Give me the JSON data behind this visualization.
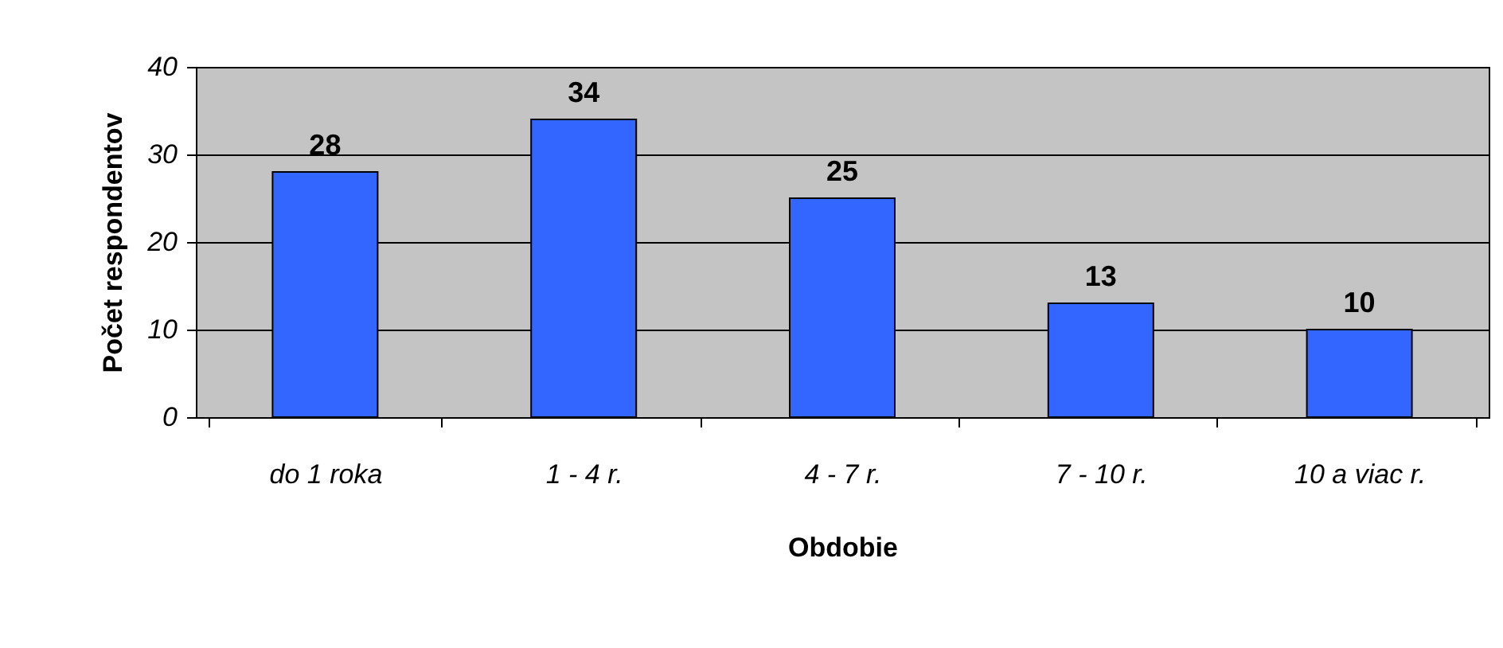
{
  "chart_data": {
    "type": "bar",
    "xlabel": "Obdobie",
    "ylabel": "Počet respondentov",
    "categories": [
      "do 1 roka",
      "1 - 4 r.",
      "4 - 7 r.",
      "7 - 10 r.",
      "10 a viac r."
    ],
    "values": [
      28,
      34,
      25,
      13,
      10
    ],
    "color": "#3366ff",
    "data_labels": true,
    "ylim": [
      0,
      40
    ],
    "yticks": [
      0,
      10,
      20,
      30,
      40
    ],
    "grid": "y"
  }
}
